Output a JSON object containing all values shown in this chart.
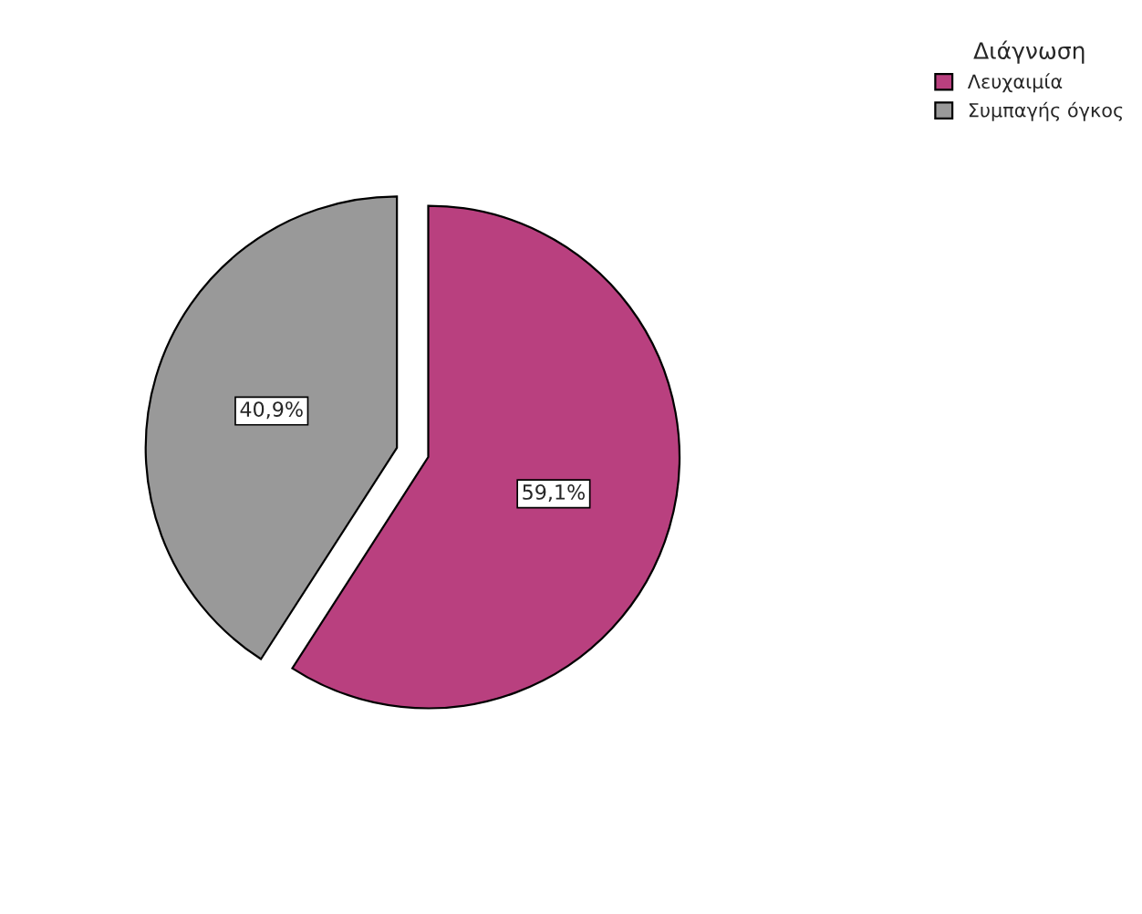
{
  "chart_data": {
    "type": "pie",
    "legend_title": "Διάγνωση",
    "categories": [
      "Λευχαιμία",
      "Συμπαγής όγκος"
    ],
    "values": [
      59.1,
      40.9
    ],
    "colors": [
      "#b9407f",
      "#999999"
    ],
    "value_labels": [
      "59,1%",
      "40,9%"
    ],
    "legend": "top right"
  }
}
